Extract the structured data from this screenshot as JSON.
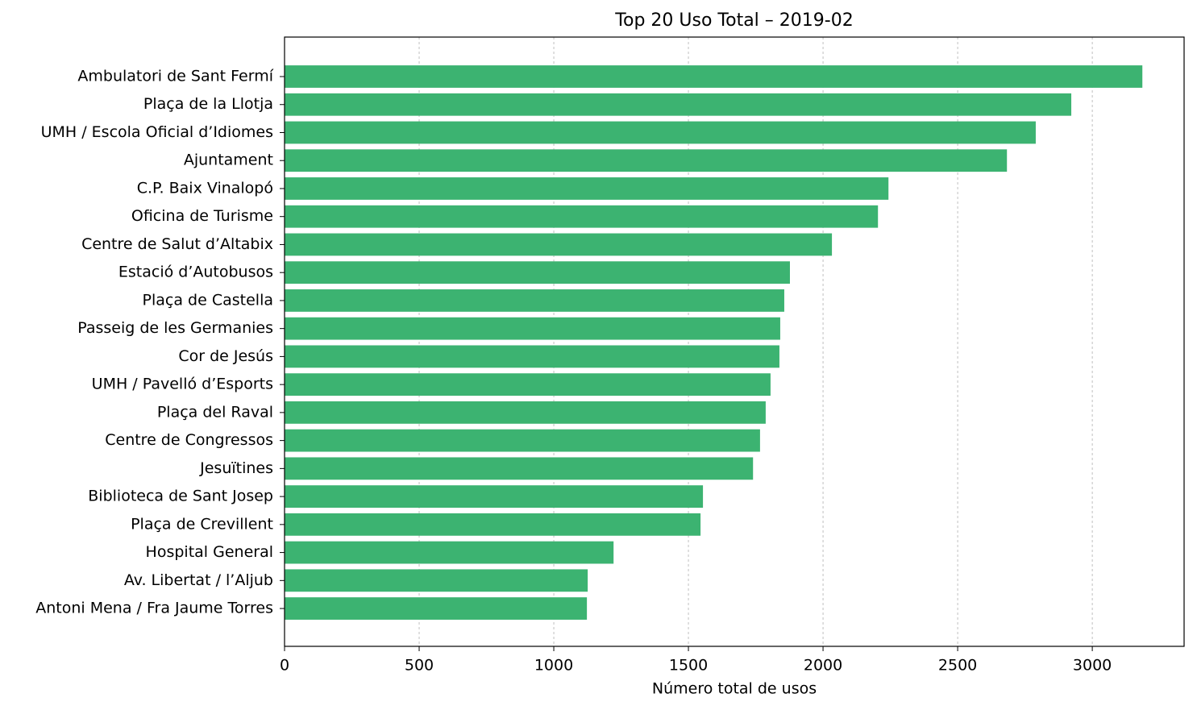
{
  "chart_data": {
    "type": "bar",
    "orientation": "horizontal",
    "title": "Top 20 Uso Total – 2019-02",
    "x_label": "Número total de usos",
    "categories": [
      "Ambulatori de Sant Fermí",
      "Plaça de la Llotja",
      "UMH / Escola Oficial d’Idiomes",
      "Ajuntament",
      "C.P. Baix Vinalopó",
      "Oficina de Turisme",
      "Centre de Salut d’Altabix",
      "Estació d’Autobusos",
      "Plaça de Castella",
      "Passeig de les Germanies",
      "Cor de Jesús",
      "UMH / Pavelló d’Esports",
      "Plaça del Raval",
      "Centre de Congressos",
      "Jesuïtines",
      "Biblioteca de Sant Josep",
      "Plaça de Crevillent",
      "Hospital General",
      "Av. Libertat / l’Aljub",
      "Antoni Mena / Fra Jaume Torres"
    ],
    "values": [
      3186,
      2922,
      2790,
      2683,
      2243,
      2204,
      2033,
      1877,
      1856,
      1841,
      1838,
      1805,
      1787,
      1766,
      1740,
      1554,
      1545,
      1222,
      1126,
      1123
    ],
    "color": "#3cb371",
    "xlim": [
      0,
      3341
    ],
    "xticks": [
      0,
      500,
      1000,
      1500,
      2000,
      2500,
      3000
    ],
    "grid": true
  }
}
